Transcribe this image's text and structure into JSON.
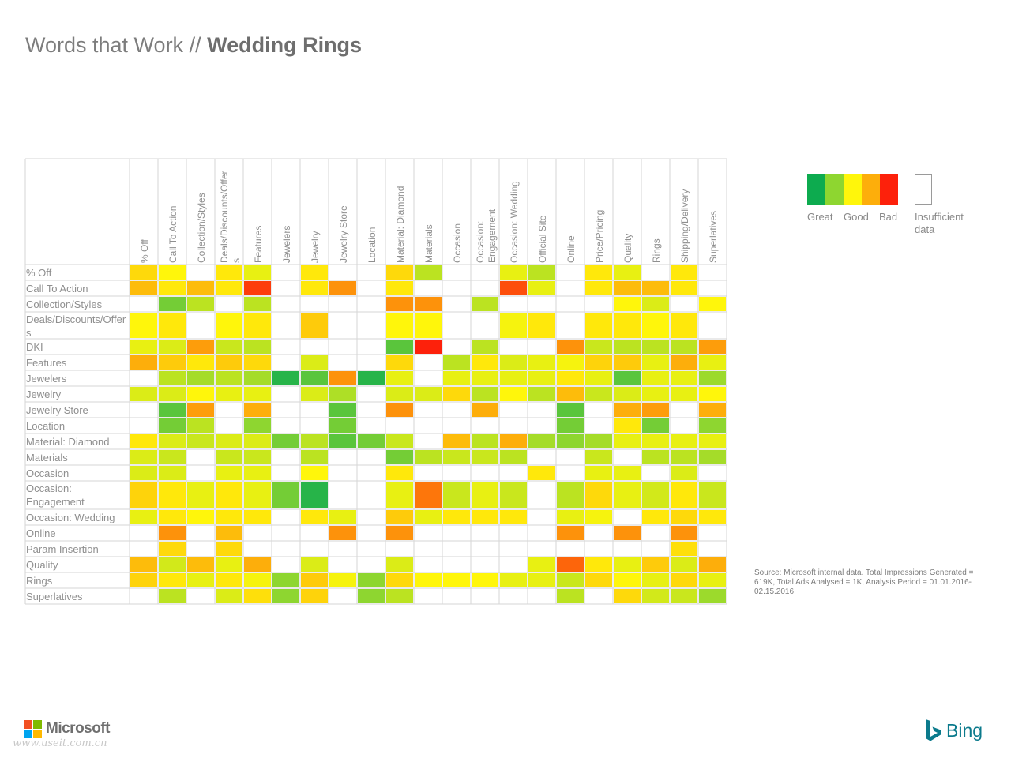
{
  "title": {
    "prefix": "Words that Work // ",
    "bold": "Wedding Rings"
  },
  "legend": {
    "colors": [
      "#0dab4f",
      "#8ed630",
      "#fff60b",
      "#fdae0b",
      "#fd210b"
    ],
    "labels": [
      "Great",
      "Good",
      "Bad"
    ],
    "insufficient": "Insufficient data"
  },
  "source": "Source: Microsoft internal data. Total Impressions Generated = 619K, Total Ads Analysed = 1K, Analysis Period = 01.01.2016-02.15.2016",
  "footer": {
    "microsoft": "Microsoft",
    "bing": "Bing",
    "watermark": "www.useit.com.cn"
  },
  "chart_data": {
    "type": "heatmap",
    "value_scale": "0 = Great (green) to 1 = Bad (red); null = insufficient data",
    "columns": [
      "% Off",
      "Call To Action",
      "Collection/Styles",
      "Deals/Discounts/Offers",
      "Features",
      "Jewelers",
      "Jewelry",
      "Jewelry Store",
      "Location",
      "Material: Diamond",
      "Materials",
      "Occasion",
      "Occasion: Engagement",
      "Occasion: Wedding",
      "Official Site",
      "Online",
      "Price/Pricing",
      "Quality",
      "Rings",
      "Shipping/Delivery",
      "Superlatives"
    ],
    "rows": [
      {
        "label": "% Off",
        "values": [
          0.6,
          0.5,
          null,
          0.55,
          0.45,
          null,
          0.55,
          null,
          null,
          0.6,
          0.35,
          null,
          null,
          0.45,
          0.35,
          null,
          0.55,
          0.45,
          null,
          0.55,
          null
        ]
      },
      {
        "label": "Call To Action",
        "values": [
          0.7,
          0.55,
          0.7,
          0.55,
          0.95,
          null,
          0.55,
          0.8,
          null,
          0.55,
          null,
          null,
          null,
          0.92,
          0.45,
          null,
          0.55,
          0.7,
          0.7,
          0.55,
          null
        ]
      },
      {
        "label": "Collection/Styles",
        "values": [
          null,
          0.2,
          0.35,
          null,
          0.35,
          null,
          null,
          null,
          null,
          0.8,
          0.8,
          null,
          0.35,
          null,
          null,
          null,
          null,
          0.5,
          0.42,
          null,
          0.5
        ]
      },
      {
        "label": "Deals/Discounts/Offers",
        "values": [
          0.5,
          0.55,
          null,
          0.5,
          0.55,
          null,
          0.65,
          null,
          null,
          0.5,
          0.5,
          null,
          null,
          0.48,
          0.55,
          null,
          0.55,
          0.55,
          0.5,
          0.55,
          null
        ]
      },
      {
        "label": "DKI",
        "values": [
          0.45,
          0.42,
          0.78,
          0.38,
          0.35,
          null,
          null,
          null,
          null,
          0.15,
          1.0,
          null,
          0.35,
          null,
          null,
          0.8,
          0.38,
          0.35,
          0.35,
          0.35,
          0.78
        ]
      },
      {
        "label": "Features",
        "values": [
          0.75,
          0.65,
          0.55,
          0.65,
          0.6,
          null,
          0.42,
          null,
          null,
          0.6,
          null,
          0.35,
          0.55,
          0.42,
          0.45,
          0.48,
          0.62,
          0.65,
          0.45,
          0.75,
          0.45
        ]
      },
      {
        "label": "Jewelers",
        "values": [
          null,
          0.35,
          0.3,
          0.35,
          0.3,
          0.05,
          0.15,
          0.8,
          0.05,
          0.45,
          null,
          0.45,
          0.45,
          0.45,
          0.45,
          0.55,
          0.45,
          0.15,
          0.45,
          0.45,
          0.28
        ]
      },
      {
        "label": "Jewelry",
        "values": [
          0.42,
          0.42,
          0.5,
          0.45,
          0.45,
          null,
          0.42,
          0.32,
          null,
          0.42,
          0.42,
          0.6,
          0.35,
          0.5,
          0.35,
          0.7,
          0.38,
          0.42,
          0.45,
          0.45,
          0.5
        ]
      },
      {
        "label": "Jewelry Store",
        "values": [
          null,
          0.15,
          0.78,
          null,
          0.75,
          null,
          null,
          0.15,
          null,
          0.8,
          null,
          null,
          0.75,
          null,
          null,
          0.15,
          null,
          0.75,
          0.78,
          null,
          0.75
        ]
      },
      {
        "label": "Location",
        "values": [
          null,
          0.2,
          0.35,
          null,
          0.25,
          null,
          null,
          0.2,
          null,
          null,
          null,
          null,
          null,
          null,
          null,
          0.2,
          null,
          0.55,
          0.2,
          null,
          0.25
        ]
      },
      {
        "label": "Material: Diamond",
        "values": [
          0.55,
          0.42,
          0.38,
          0.42,
          0.42,
          0.2,
          0.35,
          0.15,
          0.2,
          0.38,
          null,
          0.7,
          0.35,
          0.75,
          0.3,
          0.25,
          0.3,
          0.45,
          0.45,
          0.45,
          0.45
        ]
      },
      {
        "label": "Materials",
        "values": [
          0.42,
          0.38,
          null,
          0.38,
          0.38,
          null,
          0.35,
          null,
          null,
          0.2,
          0.35,
          0.38,
          0.38,
          0.35,
          null,
          null,
          0.38,
          null,
          0.35,
          0.35,
          0.3
        ]
      },
      {
        "label": "Occasion",
        "values": [
          0.42,
          0.42,
          null,
          0.45,
          0.45,
          null,
          0.5,
          null,
          null,
          0.55,
          null,
          null,
          null,
          null,
          0.55,
          null,
          0.45,
          0.45,
          null,
          0.42,
          null
        ]
      },
      {
        "label": "Occasion: Engagement",
        "values": [
          0.62,
          0.55,
          0.45,
          0.55,
          0.45,
          0.2,
          0.05,
          null,
          null,
          0.45,
          0.85,
          0.38,
          0.45,
          0.38,
          null,
          0.35,
          0.6,
          0.45,
          0.4,
          0.55,
          0.38
        ]
      },
      {
        "label": "Occasion: Wedding",
        "values": [
          0.45,
          0.55,
          0.5,
          0.55,
          0.55,
          null,
          0.55,
          0.45,
          null,
          0.65,
          0.45,
          0.55,
          0.55,
          0.55,
          null,
          0.45,
          0.48,
          null,
          0.55,
          0.6,
          0.55
        ]
      },
      {
        "label": "Online",
        "values": [
          null,
          0.8,
          null,
          0.7,
          null,
          null,
          null,
          0.8,
          null,
          0.8,
          null,
          null,
          null,
          null,
          null,
          0.8,
          null,
          0.8,
          null,
          0.8,
          null
        ]
      },
      {
        "label": "Param Insertion",
        "values": [
          null,
          0.6,
          null,
          0.6,
          null,
          null,
          null,
          null,
          null,
          null,
          null,
          null,
          null,
          null,
          null,
          null,
          null,
          null,
          null,
          0.58,
          null
        ]
      },
      {
        "label": "Quality",
        "values": [
          0.7,
          0.4,
          0.7,
          0.45,
          0.75,
          null,
          0.42,
          null,
          null,
          0.42,
          null,
          null,
          null,
          null,
          0.45,
          0.88,
          0.55,
          0.45,
          0.65,
          0.42,
          0.75
        ]
      },
      {
        "label": "Rings",
        "values": [
          0.62,
          0.55,
          0.45,
          0.55,
          0.48,
          0.25,
          0.65,
          0.48,
          0.25,
          0.6,
          0.5,
          0.5,
          0.5,
          0.45,
          0.45,
          0.38,
          0.6,
          0.5,
          0.45,
          0.6,
          0.45
        ]
      },
      {
        "label": "Superlatives",
        "values": [
          null,
          0.35,
          null,
          0.42,
          0.58,
          0.25,
          0.62,
          null,
          0.25,
          0.35,
          null,
          null,
          null,
          null,
          null,
          0.35,
          null,
          0.6,
          0.4,
          0.38,
          0.28
        ]
      }
    ]
  }
}
